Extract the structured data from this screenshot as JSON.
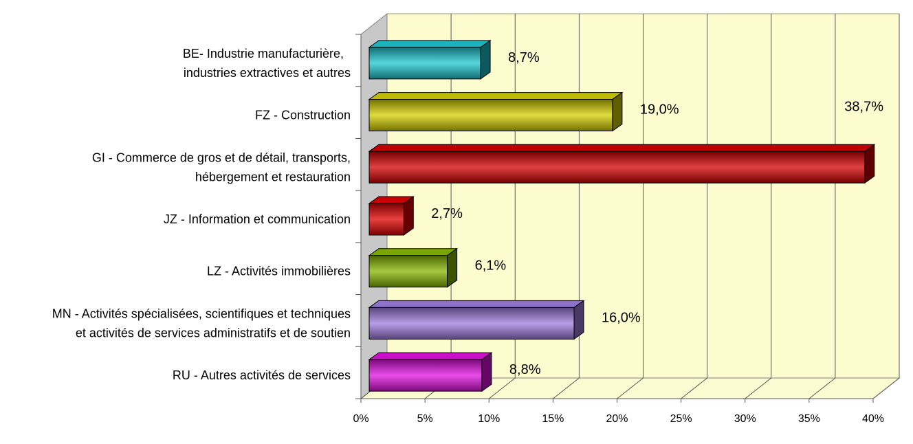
{
  "chart_data": {
    "type": "bar",
    "orientation": "horizontal",
    "three_d": true,
    "grid": true,
    "title": "",
    "xlabel": "",
    "ylabel": "",
    "xlim": [
      0,
      40
    ],
    "x_ticks": [
      "0%",
      "5%",
      "10%",
      "15%",
      "20%",
      "25%",
      "30%",
      "35%",
      "40%"
    ],
    "categories": [
      [
        "BE- Industrie manufacturière,",
        "industries extractives et autres"
      ],
      [
        "FZ - Construction"
      ],
      [
        "GI - Commerce de gros et de détail, transports,",
        "hébergement et restauration"
      ],
      [
        "JZ - Information et communication"
      ],
      [
        "LZ - Activités immobilières"
      ],
      [
        "MN - Activités spécialisées, scientifiques et techniques",
        "et activités de services administratifs et de soutien"
      ],
      [
        "RU - Autres activités de services"
      ]
    ],
    "values": [
      8.7,
      19.0,
      38.7,
      2.7,
      6.1,
      16.0,
      8.8
    ],
    "value_labels": [
      "8,7%",
      "19,0%",
      "38,7%",
      "2,7%",
      "6,1%",
      "16,0%",
      "8,8%"
    ],
    "colors": [
      "#1ec8d2",
      "#d4d000",
      "#d40000",
      "#e00000",
      "#86b800",
      "#a07ee0",
      "#e010e0"
    ],
    "wall_color": "#fdfccf",
    "floor_color": "#fbfbd2",
    "side_wall_color": "#c8c8c8"
  }
}
